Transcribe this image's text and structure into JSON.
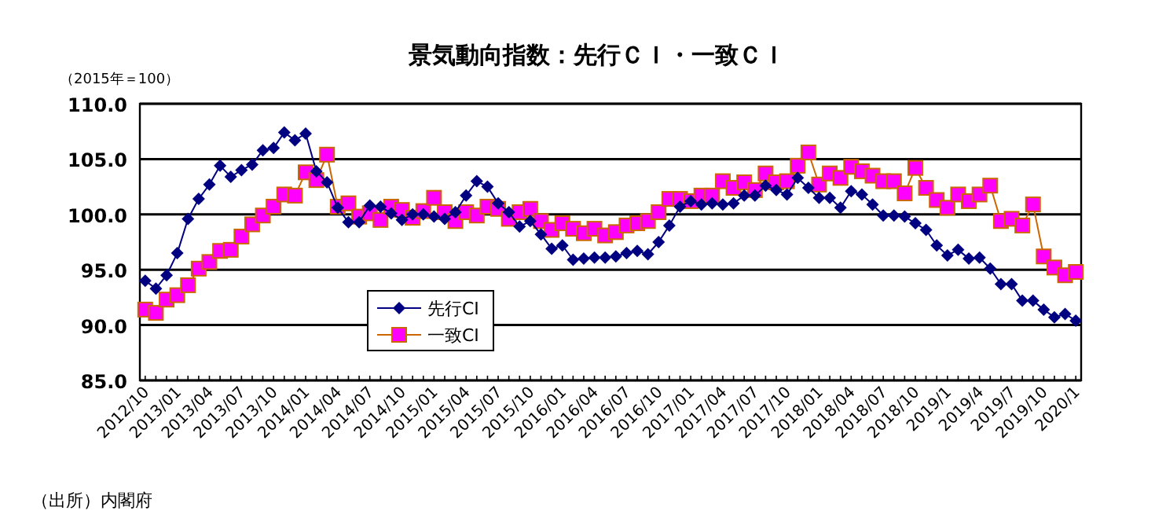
{
  "chart_data": {
    "type": "line",
    "title": "景気動向指数：先行ＣＩ・一致ＣＩ",
    "subtitle": "（2015年＝100）",
    "annotations": [
      "（出所）内閣府"
    ],
    "categories": [
      "2012/10",
      null,
      null,
      "2013/01",
      null,
      null,
      "2013/04",
      null,
      null,
      "2013/07",
      null,
      null,
      "2013/10",
      null,
      null,
      "2014/01",
      null,
      null,
      "2014/04",
      null,
      null,
      "2014/07",
      null,
      null,
      "2014/10",
      null,
      null,
      "2015/01",
      null,
      null,
      "2015/04",
      null,
      null,
      "2015/07",
      null,
      null,
      "2015/10",
      null,
      null,
      "2016/01",
      null,
      null,
      "2016/04",
      null,
      null,
      "2016/07",
      null,
      null,
      "2016/10",
      null,
      null,
      "2017/01",
      null,
      null,
      "2017/04",
      null,
      null,
      "2017/07",
      null,
      null,
      "2017/10",
      null,
      null,
      "2018/01",
      null,
      null,
      "2018/04",
      null,
      null,
      "2018/07",
      null,
      null,
      "2018/10",
      null,
      null,
      "2019/1",
      null,
      null,
      "2019/4",
      null,
      null,
      "2019/7",
      null,
      null,
      "2019/10",
      null,
      null,
      "2020/1"
    ],
    "series": [
      {
        "name": "先行CI",
        "color": "#000080",
        "marker": "diamond",
        "values": [
          94.0,
          93.3,
          94.5,
          96.5,
          99.6,
          101.4,
          102.7,
          104.4,
          103.4,
          104.0,
          104.5,
          105.8,
          106.0,
          107.4,
          106.7,
          107.3,
          103.9,
          102.9,
          100.6,
          99.3,
          99.3,
          100.8,
          100.7,
          100.1,
          99.5,
          100.0,
          100.0,
          99.8,
          99.6,
          100.2,
          101.7,
          103.0,
          102.5,
          101.0,
          100.2,
          98.9,
          99.4,
          98.2,
          96.9,
          97.2,
          95.9,
          96.0,
          96.1,
          96.1,
          96.2,
          96.5,
          96.7,
          96.4,
          97.5,
          99.0,
          100.7,
          101.2,
          100.9,
          101.0,
          100.9,
          101.0,
          101.7,
          101.7,
          102.6,
          102.2,
          101.8,
          103.3,
          102.4,
          101.5,
          101.5,
          100.6,
          102.1,
          101.8,
          100.9,
          99.9,
          99.9,
          99.8,
          99.2,
          98.6,
          97.2,
          96.3,
          96.8,
          96.0,
          96.1,
          95.1,
          93.7,
          93.7,
          92.2,
          92.2,
          91.4,
          90.7,
          91.0,
          90.4
        ]
      },
      {
        "name": "一致CI",
        "color": "#ff00ff",
        "marker": "square",
        "values": [
          91.4,
          91.1,
          92.3,
          92.7,
          93.6,
          95.1,
          95.7,
          96.7,
          96.8,
          98.0,
          99.1,
          99.9,
          100.7,
          101.8,
          101.7,
          103.8,
          103.1,
          105.4,
          100.7,
          101.0,
          99.8,
          100.1,
          99.5,
          100.7,
          100.4,
          99.7,
          100.3,
          101.5,
          100.2,
          99.4,
          100.2,
          99.9,
          100.7,
          100.5,
          99.6,
          100.2,
          100.5,
          99.4,
          98.6,
          99.2,
          98.7,
          98.3,
          98.7,
          98.1,
          98.4,
          99.0,
          99.2,
          99.4,
          100.2,
          101.4,
          101.4,
          101.2,
          101.7,
          101.7,
          103.0,
          102.4,
          102.9,
          102.2,
          103.7,
          102.9,
          103.0,
          104.4,
          105.6,
          102.7,
          103.7,
          103.3,
          104.3,
          103.9,
          103.5,
          103.0,
          103.0,
          101.9,
          104.2,
          102.4,
          101.3,
          100.6,
          101.8,
          101.2,
          101.8,
          102.6,
          99.4,
          99.6,
          99.0,
          100.9,
          96.2,
          95.2,
          94.5,
          94.8
        ]
      }
    ],
    "ylim": [
      85,
      110
    ],
    "yticks": [
      {
        "value": 85,
        "label": "85.0"
      },
      {
        "value": 90,
        "label": "90.0"
      },
      {
        "value": 95,
        "label": "95.0"
      },
      {
        "value": 100,
        "label": "100.0"
      },
      {
        "value": 105,
        "label": "105.0"
      },
      {
        "value": 110,
        "label": "110.0"
      }
    ],
    "grid": "y",
    "legend": "bottom left"
  }
}
